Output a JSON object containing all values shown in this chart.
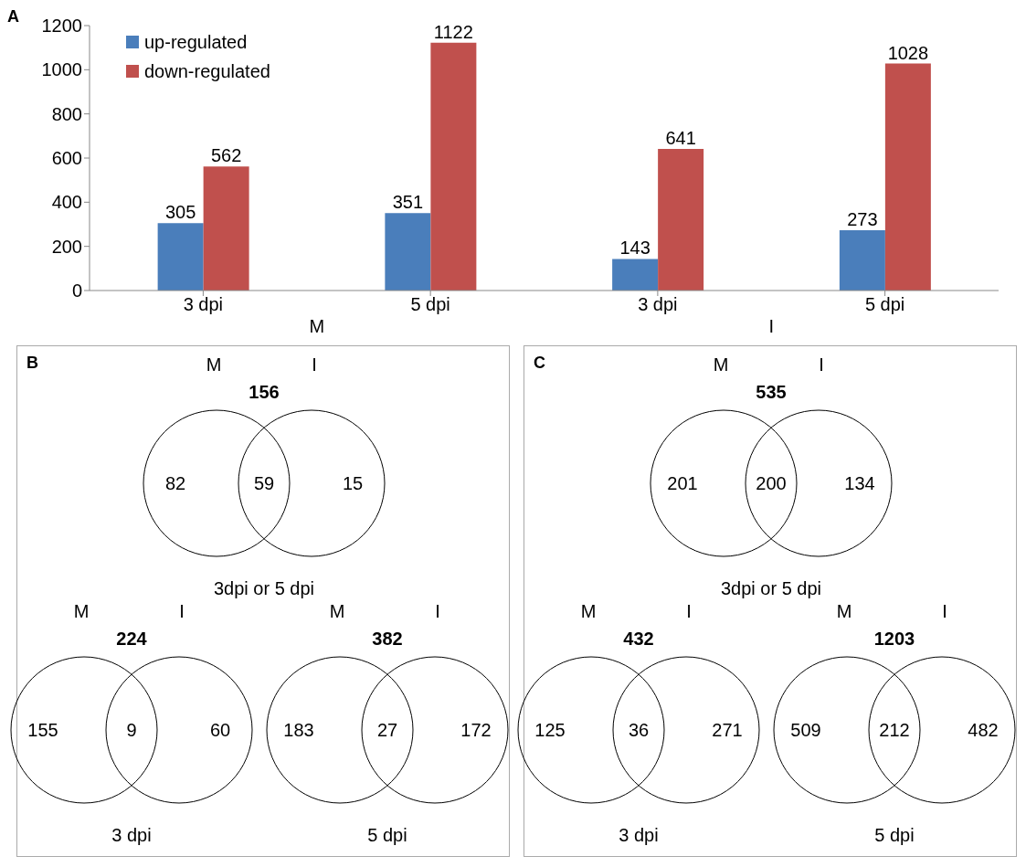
{
  "chart_data": [
    {
      "type": "bar",
      "categories": [
        "3 dpi",
        "5 dpi",
        "3 dpi",
        "5 dpi"
      ],
      "series": [
        {
          "name": "up-regulated",
          "color": "#4a7ebb",
          "values": [
            305,
            351,
            143,
            273
          ]
        },
        {
          "name": "down-regulated",
          "color": "#c0504d",
          "values": [
            562,
            1122,
            641,
            1028
          ]
        }
      ],
      "ylim": [
        0,
        1200
      ],
      "yticks": [
        0,
        200,
        400,
        600,
        800,
        1000,
        1200
      ],
      "grid": false,
      "legend": "top left",
      "data_labels": true,
      "annotations": [
        "A",
        "M",
        "I"
      ]
    },
    {
      "type": "other",
      "title": "156",
      "categories": [
        "M",
        null,
        "I"
      ],
      "values": [
        82,
        59,
        15
      ],
      "data_labels": true,
      "xlabel": "3dpi or 5 dpi",
      "annotations": [
        "B"
      ]
    },
    {
      "type": "other",
      "title": "224",
      "categories": [
        "M",
        null,
        "I"
      ],
      "values": [
        155,
        9,
        60
      ],
      "data_labels": true,
      "xlabel": "3 dpi"
    },
    {
      "type": "other",
      "title": "382",
      "categories": [
        "M",
        null,
        "I"
      ],
      "values": [
        183,
        27,
        172
      ],
      "data_labels": true,
      "xlabel": "5 dpi"
    },
    {
      "type": "other",
      "title": "535",
      "categories": [
        "M",
        null,
        "I"
      ],
      "values": [
        201,
        200,
        134
      ],
      "data_labels": true,
      "xlabel": "3dpi or 5 dpi",
      "annotations": [
        "C"
      ]
    },
    {
      "type": "other",
      "title": "432",
      "categories": [
        "M",
        null,
        "I"
      ],
      "values": [
        125,
        36,
        271
      ],
      "data_labels": true,
      "xlabel": "3 dpi"
    },
    {
      "type": "other",
      "title": "1203",
      "categories": [
        "M",
        null,
        "I"
      ],
      "values": [
        509,
        212,
        482
      ],
      "data_labels": true,
      "xlabel": "5 dpi"
    }
  ]
}
